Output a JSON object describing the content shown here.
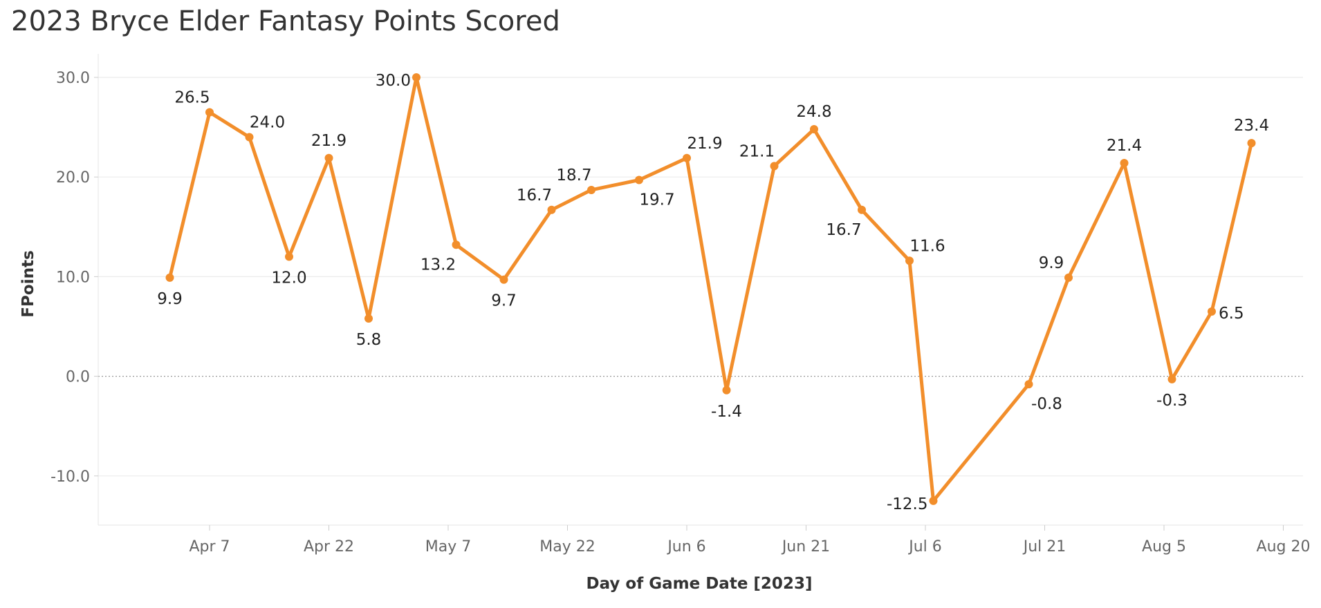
{
  "chart_data": {
    "type": "line",
    "title": "2023 Bryce Elder Fantasy Points Scored",
    "xlabel": "Day of Game Date [2023]",
    "ylabel": "FPoints",
    "ylim": [
      -15,
      30
    ],
    "yticks": [
      "30.0",
      "20.0",
      "10.0",
      "0.0",
      "-10.0"
    ],
    "ytick_values": [
      30,
      20,
      10,
      0,
      -10
    ],
    "xticks": [
      "Apr 7",
      "Apr 22",
      "May 7",
      "May 22",
      "Jun 6",
      "Jun 21",
      "Jul 6",
      "Jul 21",
      "Aug 5",
      "Aug 20"
    ],
    "xtick_dates": [
      "2023-04-07",
      "2023-04-22",
      "2023-05-07",
      "2023-05-22",
      "2023-06-06",
      "2023-06-21",
      "2023-07-06",
      "2023-07-21",
      "2023-08-05",
      "2023-08-20"
    ],
    "xlim": [
      "2023-03-25",
      "2023-08-22"
    ],
    "color": "#f28e2b",
    "grid": true,
    "zero_line": "dotted",
    "points": [
      {
        "x": "2023-04-02",
        "y": 9.9,
        "label": "9.9",
        "pos": "below"
      },
      {
        "x": "2023-04-07",
        "y": 26.5,
        "label": "26.5",
        "pos": "above-left"
      },
      {
        "x": "2023-04-12",
        "y": 24.0,
        "label": "24.0",
        "pos": "above-right"
      },
      {
        "x": "2023-04-17",
        "y": 12.0,
        "label": "12.0",
        "pos": "below"
      },
      {
        "x": "2023-04-22",
        "y": 21.9,
        "label": "21.9",
        "pos": "above"
      },
      {
        "x": "2023-04-27",
        "y": 5.8,
        "label": "5.8",
        "pos": "below"
      },
      {
        "x": "2023-05-03",
        "y": 30.0,
        "label": "30.0",
        "pos": "left"
      },
      {
        "x": "2023-05-08",
        "y": 13.2,
        "label": "13.2",
        "pos": "below-left"
      },
      {
        "x": "2023-05-14",
        "y": 9.7,
        "label": "9.7",
        "pos": "below"
      },
      {
        "x": "2023-05-20",
        "y": 16.7,
        "label": "16.7",
        "pos": "above-left"
      },
      {
        "x": "2023-05-25",
        "y": 18.7,
        "label": "18.7",
        "pos": "above-left"
      },
      {
        "x": "2023-05-31",
        "y": 19.7,
        "label": "19.7",
        "pos": "below-right"
      },
      {
        "x": "2023-06-06",
        "y": 21.9,
        "label": "21.9",
        "pos": "above-right"
      },
      {
        "x": "2023-06-11",
        "y": -1.4,
        "label": "-1.4",
        "pos": "below"
      },
      {
        "x": "2023-06-17",
        "y": 21.1,
        "label": "21.1",
        "pos": "above-left"
      },
      {
        "x": "2023-06-22",
        "y": 24.8,
        "label": "24.8",
        "pos": "above"
      },
      {
        "x": "2023-06-28",
        "y": 16.7,
        "label": "16.7",
        "pos": "below-left"
      },
      {
        "x": "2023-07-04",
        "y": 11.6,
        "label": "11.6",
        "pos": "above-right"
      },
      {
        "x": "2023-07-07",
        "y": -12.5,
        "label": "-12.5",
        "pos": "left"
      },
      {
        "x": "2023-07-19",
        "y": -0.8,
        "label": "-0.8",
        "pos": "below-right"
      },
      {
        "x": "2023-07-24",
        "y": 9.9,
        "label": "9.9",
        "pos": "above-left"
      },
      {
        "x": "2023-07-31",
        "y": 21.4,
        "label": "21.4",
        "pos": "above"
      },
      {
        "x": "2023-08-06",
        "y": -0.3,
        "label": "-0.3",
        "pos": "below"
      },
      {
        "x": "2023-08-11",
        "y": 6.5,
        "label": "6.5",
        "pos": "right"
      },
      {
        "x": "2023-08-16",
        "y": 23.4,
        "label": "23.4",
        "pos": "above"
      }
    ]
  }
}
